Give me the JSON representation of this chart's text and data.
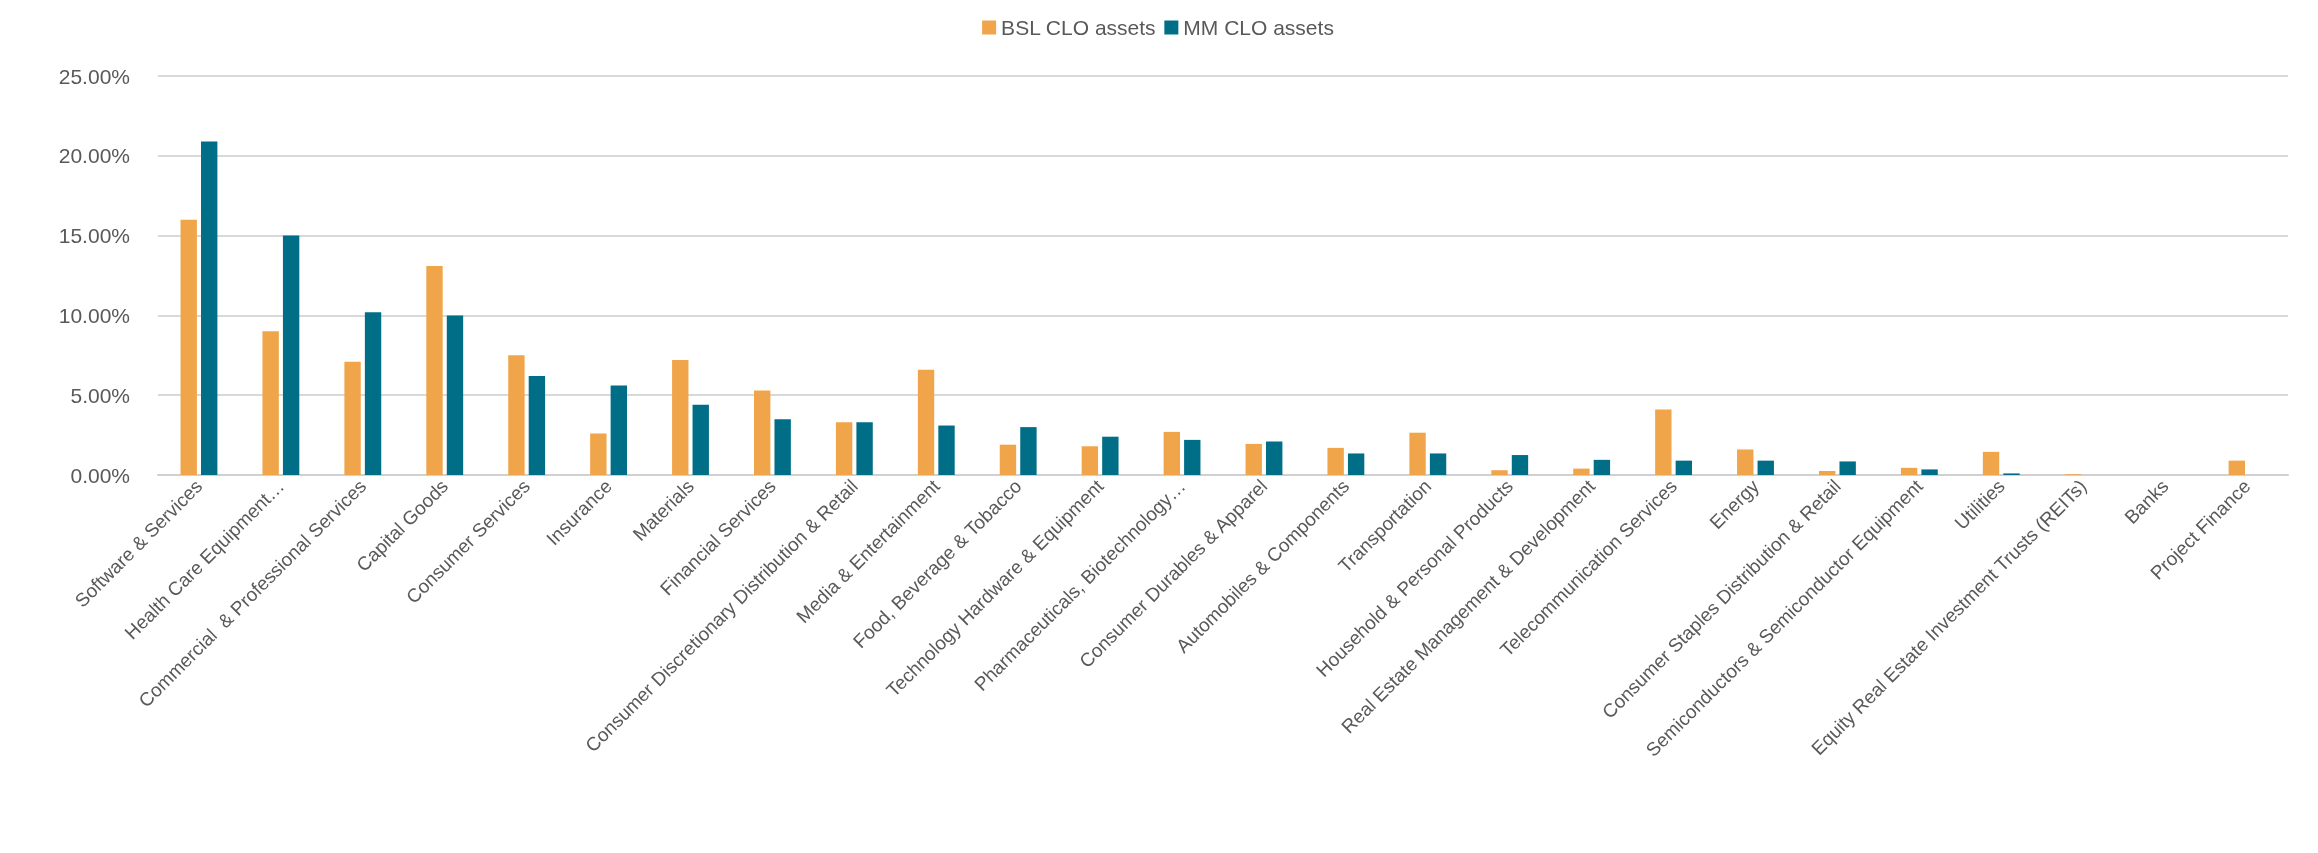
{
  "chart_data": {
    "type": "bar",
    "categories": [
      "Software & Services",
      "Health Care Equipment…",
      "Commercial  & Professional Services",
      "Capital Goods",
      "Consumer Services",
      "Insurance",
      "Materials",
      "Financial Services",
      "Consumer Discretionary Distribution & Retail",
      "Media & Entertainment",
      "Food, Beverage & Tobacco",
      "Technology Hardware & Equipment",
      "Pharmaceuticals, Biotechnology…",
      "Consumer Durables & Apparel",
      "Automobiles & Components",
      "Transportation",
      "Household & Personal Products",
      "Real Estate Management & Development",
      "Telecommunication Services",
      "Energy",
      "Consumer Staples Distribution & Retail",
      "Semiconductors & Semiconductor Equipment",
      "Utilities",
      "Equity Real Estate Investment Trusts (REITs)",
      "Banks",
      "Project Finance"
    ],
    "series": [
      {
        "name": "BSL CLO assets",
        "color": "#f0a54a",
        "values": [
          16.0,
          9.0,
          7.1,
          13.1,
          7.5,
          2.6,
          7.2,
          5.3,
          3.3,
          6.6,
          1.9,
          1.8,
          2.7,
          1.95,
          1.7,
          2.65,
          0.3,
          0.4,
          4.1,
          1.6,
          0.25,
          0.45,
          1.45,
          0.05,
          0,
          0.9
        ]
      },
      {
        "name": "MM CLO assets",
        "color": "#016e88",
        "values": [
          20.9,
          15.0,
          10.2,
          10.0,
          6.2,
          5.6,
          4.4,
          3.5,
          3.3,
          3.1,
          3.0,
          2.4,
          2.2,
          2.1,
          1.35,
          1.35,
          1.25,
          0.95,
          0.9,
          0.9,
          0.85,
          0.35,
          0.1,
          0,
          0,
          0
        ]
      }
    ],
    "ylim": [
      0,
      25
    ],
    "yticks": [
      {
        "value": 0,
        "label": "0.00%"
      },
      {
        "value": 5,
        "label": "5.00%"
      },
      {
        "value": 10,
        "label": "10.00%"
      },
      {
        "value": 15,
        "label": "15.00%"
      },
      {
        "value": 20,
        "label": "20.00%"
      },
      {
        "value": 25,
        "label": "25.00%"
      }
    ],
    "grid": "y",
    "legend": "top"
  }
}
